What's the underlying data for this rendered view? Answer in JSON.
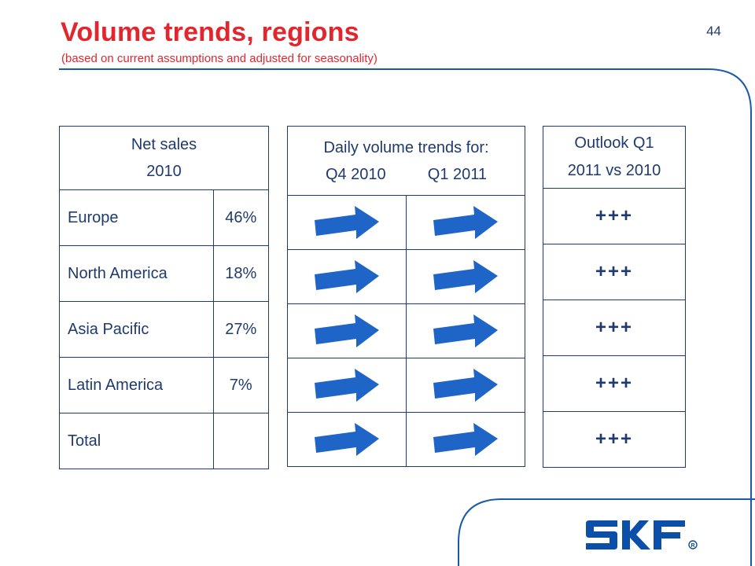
{
  "slide": {
    "title": "Volume trends, regions",
    "subtitle": "(based on current assumptions and adjusted for seasonality)",
    "page_number": "44"
  },
  "net_sales": {
    "header_line1": "Net sales",
    "header_line2": "2010",
    "rows": [
      {
        "region": "Europe",
        "share": "46%"
      },
      {
        "region": "North America",
        "share": "18%"
      },
      {
        "region": "Asia Pacific",
        "share": "27%"
      },
      {
        "region": "Latin America",
        "share": "7%"
      },
      {
        "region": "Total",
        "share": ""
      }
    ]
  },
  "daily_volume": {
    "header_line1": "Daily volume trends for:",
    "col_q4": "Q4 2010",
    "col_q1": "Q1 2011",
    "trend_icon": "right-arrow-icon",
    "arrow_color": "#1f65c8"
  },
  "outlook": {
    "header_line1": "Outlook Q1",
    "header_line2": "2011 vs 2010",
    "values": [
      "+++",
      "+++",
      "+++",
      "+++",
      "+++"
    ]
  },
  "brand": {
    "logo_text": "SKF",
    "logo_color": "#0b4fa8",
    "title_color": "#e3262d"
  }
}
